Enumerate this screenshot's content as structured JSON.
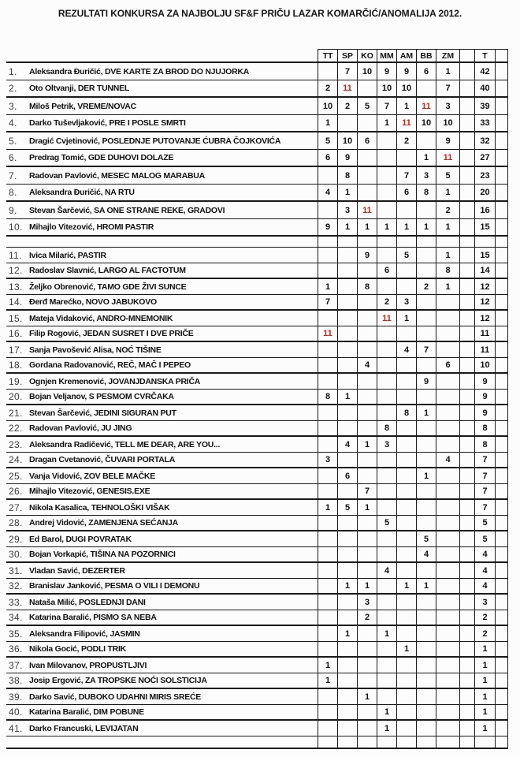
{
  "title": "REZULTATI KONKURSA ZA NAJBOLJU SF&F PRIČU LAZAR KOMARČIĆ/ANOMALIJA 2012.",
  "accent_red": "#c2261c",
  "table": {
    "columns": [
      "TT",
      "SP",
      "KO",
      "MM",
      "AM",
      "BB",
      "ZM",
      "T"
    ],
    "rows": [
      {
        "num": "1.",
        "entry": "Aleksandra Đuričić, DVE KARTE ZA BROD DO NJUJORKA",
        "scores": [
          "",
          "7",
          "10",
          "9",
          "9",
          "6",
          "1"
        ],
        "total": "42"
      },
      {
        "num": "2.",
        "entry": "Oto Oltvanji, DER TUNNEL",
        "scores": [
          "2",
          "11",
          "",
          "10",
          "10",
          "",
          "7"
        ],
        "total": "40"
      },
      {
        "num": "3.",
        "entry": "Miloš Petrik, VREME/NOVAC",
        "scores": [
          "10",
          "2",
          "5",
          "7",
          "1",
          "11",
          "3"
        ],
        "total": "39"
      },
      {
        "num": "4.",
        "entry": "Darko Tuševljaković, PRE I POSLE SMRTI",
        "scores": [
          "1",
          "",
          "",
          "1",
          "11",
          "10",
          "10"
        ],
        "total": "33"
      },
      {
        "num": "5.",
        "entry": "Dragić Cvjetinović, POSLEDNJE PUTOVANJE ĆUBRA ČOJKOVIĆA",
        "scores": [
          "5",
          "10",
          "6",
          "",
          "2",
          "",
          "9"
        ],
        "total": "32"
      },
      {
        "num": "6.",
        "entry": "Predrag Tomić, GDE DUHOVI DOLAZE",
        "scores": [
          "6",
          "9",
          "",
          "",
          "",
          "1",
          "11"
        ],
        "total": "27"
      },
      {
        "num": "7.",
        "entry": "Radovan Pavlović, MESEC MALOG MARABUA",
        "scores": [
          "",
          "8",
          "",
          "",
          "7",
          "3",
          "5"
        ],
        "total": "23"
      },
      {
        "num": "8.",
        "entry": "Aleksandra Đuričić, NA RTU",
        "scores": [
          "4",
          "1",
          "",
          "",
          "6",
          "8",
          "1"
        ],
        "total": "20"
      },
      {
        "num": "9.",
        "entry": "Stevan Šarčević, SA ONE STRANE REKE, GRADOVI",
        "scores": [
          "",
          "3",
          "11",
          "",
          "",
          "",
          "2"
        ],
        "total": "16"
      },
      {
        "num": "10.",
        "entry": "Mihajlo Vitezović, HROMI PASTIR",
        "scores": [
          "9",
          "1",
          "1",
          "1",
          "1",
          "1",
          "1"
        ],
        "total": "15"
      },
      {
        "num": "",
        "entry": "",
        "scores": [
          "",
          "",
          "",
          "",
          "",
          "",
          ""
        ],
        "total": "",
        "spacer": true
      },
      {
        "num": "11.",
        "entry": "Ivica Milarić, PASTIR",
        "scores": [
          "",
          "",
          "9",
          "",
          "5",
          "",
          "1"
        ],
        "total": "15"
      },
      {
        "num": "12.",
        "entry": "Radoslav Slavnić, LARGO AL FACTOTUM",
        "scores": [
          "",
          "",
          "",
          "6",
          "",
          "",
          "8"
        ],
        "total": "14"
      },
      {
        "num": "13.",
        "entry": "Željko Obrenović, TAMO GDE ŽIVI SUNCE",
        "scores": [
          "1",
          "",
          "8",
          "",
          "",
          "2",
          "1"
        ],
        "total": "12"
      },
      {
        "num": "14.",
        "entry": "Đerđ Marećko, NOVO JABUKOVO",
        "scores": [
          "7",
          "",
          "",
          "2",
          "3",
          "",
          ""
        ],
        "total": "12"
      },
      {
        "num": "15.",
        "entry": "Mateja Vidaković, ANDRO-MNEMONIK",
        "scores": [
          "",
          "",
          "",
          "11",
          "1",
          "",
          ""
        ],
        "total": "12"
      },
      {
        "num": "16.",
        "entry": "Filip Rogović, JEDAN SUSRET I DVE PRIČE",
        "scores": [
          "11",
          "",
          "",
          "",
          "",
          "",
          ""
        ],
        "total": "11"
      },
      {
        "num": "17.",
        "entry": "Sanja Pavošević Alisa, NOĆ TIŠINE",
        "scores": [
          "",
          "",
          "",
          "",
          "4",
          "7",
          ""
        ],
        "total": "11"
      },
      {
        "num": "18.",
        "entry": "Gordana Radovanović, REČ, MAČ I PEPEO",
        "scores": [
          "",
          "",
          "4",
          "",
          "",
          "",
          "6"
        ],
        "total": "10"
      },
      {
        "num": "19.",
        "entry": "Ognjen Kremenović, JOVANJDANSKA PRIČA",
        "scores": [
          "",
          "",
          "",
          "",
          "",
          "9",
          ""
        ],
        "total": "9"
      },
      {
        "num": "20.",
        "entry": "Bojan Veljanov, S PESMOM CVRČAKA",
        "scores": [
          "8",
          "1",
          "",
          "",
          "",
          "",
          ""
        ],
        "total": "9"
      },
      {
        "num": "21.",
        "entry": "Stevan Šarčević, JEDINI SIGURAN PUT",
        "scores": [
          "",
          "",
          "",
          "",
          "8",
          "1",
          ""
        ],
        "total": "9"
      },
      {
        "num": "22.",
        "entry": "Radovan Pavlović, JU JING",
        "scores": [
          "",
          "",
          "",
          "8",
          "",
          "",
          ""
        ],
        "total": "8"
      },
      {
        "num": "23.",
        "entry": "Aleksandra Radičević, TELL ME DEAR, ARE YOU...",
        "scores": [
          "",
          "4",
          "1",
          "3",
          "",
          "",
          ""
        ],
        "total": "8"
      },
      {
        "num": "24.",
        "entry": "Dragan Cvetanović, ČUVARI PORTALA",
        "scores": [
          "3",
          "",
          "",
          "",
          "",
          "",
          "4"
        ],
        "total": "7"
      },
      {
        "num": "25.",
        "entry": "Vanja Vidović, ZOV BELE MAČKE",
        "scores": [
          "",
          "6",
          "",
          "",
          "",
          "1",
          ""
        ],
        "total": "7"
      },
      {
        "num": "26.",
        "entry": "Mihajlo Vitezović, GENESIS.EXE",
        "scores": [
          "",
          "",
          "7",
          "",
          "",
          "",
          ""
        ],
        "total": "7"
      },
      {
        "num": "27.",
        "entry": "Nikola Kasalica, TEHNOLOŠKI VIŠAK",
        "scores": [
          "1",
          "5",
          "1",
          "",
          "",
          "",
          ""
        ],
        "total": "7"
      },
      {
        "num": "28.",
        "entry": "Andrej Vidović, ZAMENJENA SEĆANJA",
        "scores": [
          "",
          "",
          "",
          "5",
          "",
          "",
          ""
        ],
        "total": "5"
      },
      {
        "num": "29.",
        "entry": "Ed Barol, DUGI POVRATAK",
        "scores": [
          "",
          "",
          "",
          "",
          "",
          "5",
          ""
        ],
        "total": "5"
      },
      {
        "num": "30.",
        "entry": "Bojan Vorkapić, TIŠINA NA POZORNICI",
        "scores": [
          "",
          "",
          "",
          "",
          "",
          "4",
          ""
        ],
        "total": "4"
      },
      {
        "num": "31.",
        "entry": "Vladan Savić, DEZERTER",
        "scores": [
          "",
          "",
          "",
          "4",
          "",
          "",
          ""
        ],
        "total": "4"
      },
      {
        "num": "32.",
        "entry": "Branislav Janković, PESMA O VILI I DEMONU",
        "scores": [
          "",
          "1",
          "1",
          "",
          "1",
          "1",
          ""
        ],
        "total": "4"
      },
      {
        "num": "33.",
        "entry": "Nataša Milić, POSLEDNJI DANI",
        "scores": [
          "",
          "",
          "3",
          "",
          "",
          "",
          ""
        ],
        "total": "3"
      },
      {
        "num": "34.",
        "entry": "Katarina Baralić, PISMO SA NEBA",
        "scores": [
          "",
          "",
          "2",
          "",
          "",
          "",
          ""
        ],
        "total": "2"
      },
      {
        "num": "35.",
        "entry": "Aleksandra Filipović, JASMIN",
        "scores": [
          "",
          "1",
          "",
          "1",
          "",
          "",
          ""
        ],
        "total": "2"
      },
      {
        "num": "36.",
        "entry": "Nikola Gocić, PODLI TRIK",
        "scores": [
          "",
          "",
          "",
          "",
          "1",
          "",
          ""
        ],
        "total": "1"
      },
      {
        "num": "37.",
        "entry": "Ivan Milovanov, PROPUSTLJIVI",
        "scores": [
          "1",
          "",
          "",
          "",
          "",
          "",
          ""
        ],
        "total": "1"
      },
      {
        "num": "38.",
        "entry": "Josip Ergović, ZA TROPSKE NOĆI SOLSTICIJA",
        "scores": [
          "1",
          "",
          "",
          "",
          "",
          "",
          ""
        ],
        "total": "1"
      },
      {
        "num": "39.",
        "entry": "Darko Savić, DUBOKO UDAHNI MIRIS SREĆE",
        "scores": [
          "",
          "",
          "1",
          "",
          "",
          "",
          ""
        ],
        "total": "1"
      },
      {
        "num": "40.",
        "entry": "Katarina Baralić, DIM POBUNE",
        "scores": [
          "",
          "",
          "",
          "1",
          "",
          "",
          ""
        ],
        "total": "1"
      },
      {
        "num": "41.",
        "entry": "Darko Francuski, LEVIJATAN",
        "scores": [
          "",
          "",
          "",
          "1",
          "",
          "",
          ""
        ],
        "total": "1"
      },
      {
        "num": "",
        "entry": "",
        "scores": [
          "",
          "",
          "",
          "",
          "",
          "",
          ""
        ],
        "total": "",
        "spacer": true
      }
    ]
  }
}
